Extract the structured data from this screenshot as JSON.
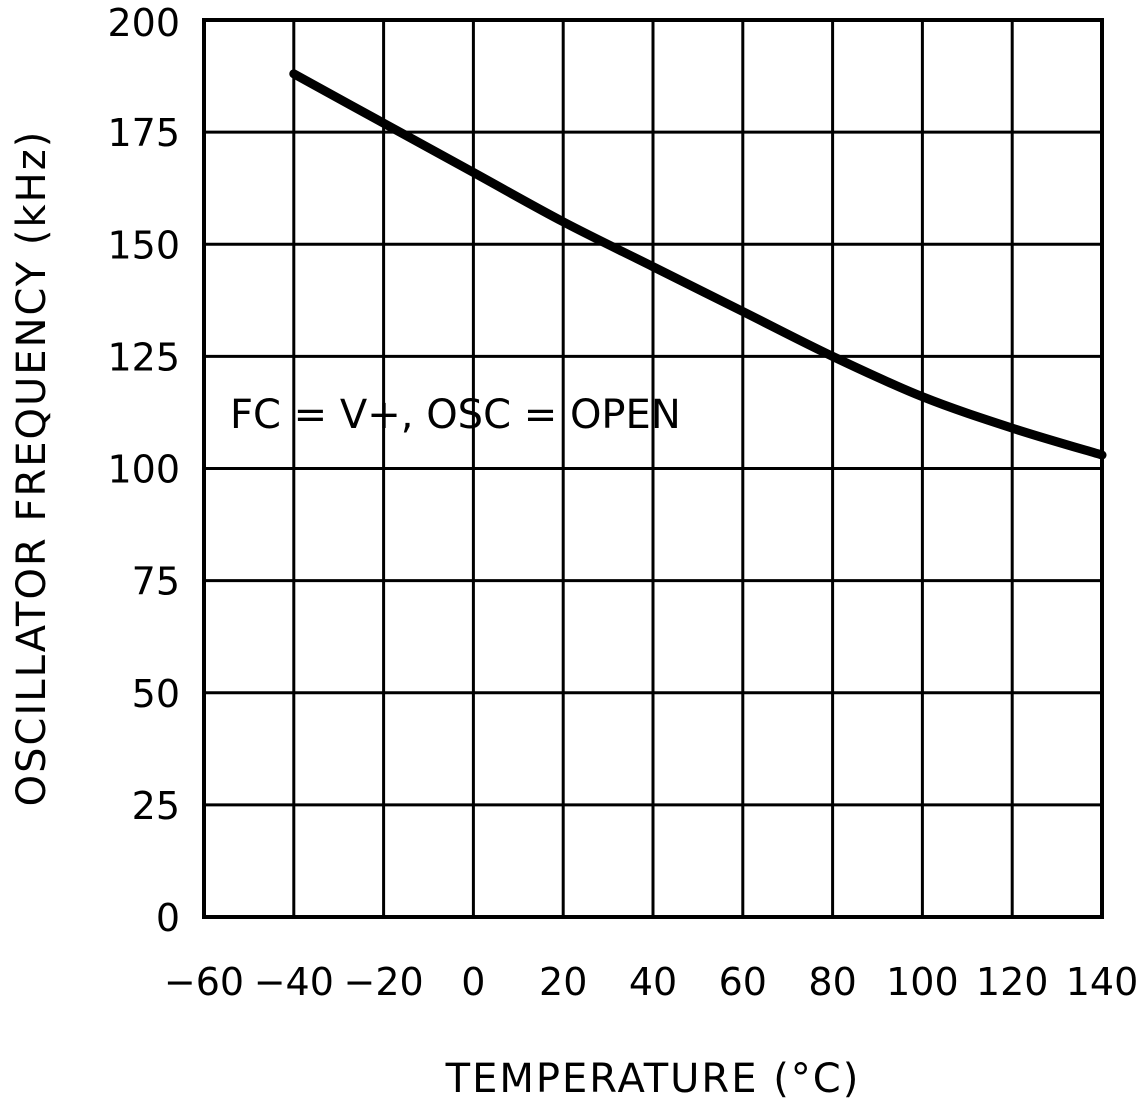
{
  "chart_data": {
    "type": "line",
    "title": "",
    "xlabel": "TEMPERATURE (°C)",
    "ylabel": "OSCILLATOR FREQUENCY (kHz)",
    "xlim": [
      -60,
      140
    ],
    "ylim": [
      0,
      200
    ],
    "xticks": [
      -60,
      -40,
      -20,
      0,
      20,
      40,
      60,
      80,
      100,
      120,
      140
    ],
    "xtick_labels": [
      "-60",
      "-40",
      "-20",
      "0",
      "20",
      "40",
      "60",
      "80",
      "100",
      "120",
      "140"
    ],
    "yticks": [
      0,
      25,
      50,
      75,
      100,
      125,
      150,
      175,
      200
    ],
    "ytick_labels": [
      "0",
      "25",
      "50",
      "75",
      "100",
      "125",
      "150",
      "175",
      "200"
    ],
    "grid": true,
    "legend": "none",
    "annotation": "FC = V+, OSC = OPEN",
    "series": [
      {
        "color": "#000000",
        "x": [
          -40,
          -20,
          0,
          20,
          40,
          60,
          80,
          100,
          120,
          140
        ],
        "y": [
          188,
          177,
          166,
          155,
          145,
          135,
          125,
          116,
          109,
          103
        ]
      }
    ]
  }
}
